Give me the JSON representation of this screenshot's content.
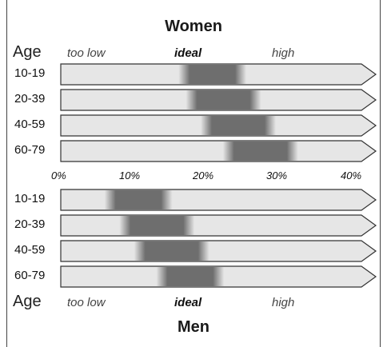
{
  "women": {
    "title": "Women",
    "axis_label": "Age",
    "headers": [
      "too low",
      "ideal",
      "high"
    ],
    "rows": [
      {
        "label": "10-19",
        "ideal_from": 17,
        "ideal_to": 24
      },
      {
        "label": "20-39",
        "ideal_from": 18,
        "ideal_to": 26
      },
      {
        "label": "40-59",
        "ideal_from": 20,
        "ideal_to": 28
      },
      {
        "label": "60-79",
        "ideal_from": 23,
        "ideal_to": 31
      }
    ]
  },
  "scale": {
    "ticks": [
      "0%",
      "10%",
      "20%",
      "30%",
      "40%"
    ],
    "min": 0,
    "max": 40
  },
  "men": {
    "title": "Men",
    "axis_label": "Age",
    "headers": [
      "too low",
      "ideal",
      "high"
    ],
    "rows": [
      {
        "label": "10-19",
        "ideal_from": 7,
        "ideal_to": 14
      },
      {
        "label": "20-39",
        "ideal_from": 9,
        "ideal_to": 17
      },
      {
        "label": "40-59",
        "ideal_from": 11,
        "ideal_to": 19
      },
      {
        "label": "60-79",
        "ideal_from": 14,
        "ideal_to": 21
      }
    ]
  },
  "colors": {
    "bar_fill": "#e6e6e6",
    "ideal_dark": "#6e6e6e",
    "outline": "#333333"
  }
}
